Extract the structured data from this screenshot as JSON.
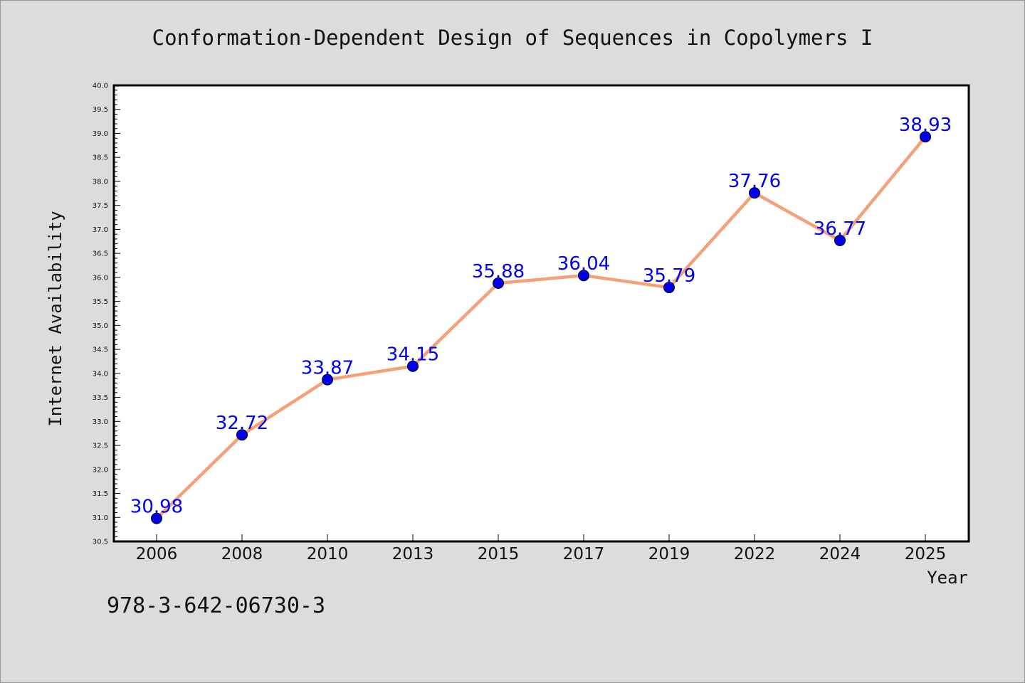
{
  "isbn": "978-3-642-06730-3",
  "colors": {
    "background": "#dcdcdc",
    "plot_background": "#ffffff",
    "line": "#f4a07a",
    "marker": "#0000ee",
    "data_label": "#0000ee",
    "text": "#111111"
  },
  "chart_data": {
    "type": "line",
    "title": "Conformation-Dependent Design of Sequences in Copolymers I",
    "xlabel": "Year",
    "ylabel": "Internet Availability",
    "categories": [
      "2006",
      "2008",
      "2010",
      "2013",
      "2015",
      "2017",
      "2019",
      "2022",
      "2024",
      "2025"
    ],
    "series": [
      {
        "values": [
          30.98,
          32.72,
          33.87,
          34.15,
          35.88,
          36.04,
          35.79,
          37.76,
          36.77,
          38.93
        ],
        "labels": [
          "30.98",
          "32.72",
          "33.87",
          "34.15",
          "35.88",
          "36.04",
          "35.79",
          "37.76",
          "36.77",
          "38.93"
        ]
      }
    ],
    "ylim": [
      30.5,
      40.0
    ],
    "yticks": [
      "30.5",
      "31.0",
      "31.5",
      "32.0",
      "32.5",
      "33.0",
      "33.5",
      "34.0",
      "34.5",
      "35.0",
      "35.5",
      "36.0",
      "36.5",
      "37.0",
      "37.5",
      "38.0",
      "38.5",
      "39.0",
      "39.5",
      "40.0"
    ],
    "grid": false,
    "legend": "none"
  }
}
